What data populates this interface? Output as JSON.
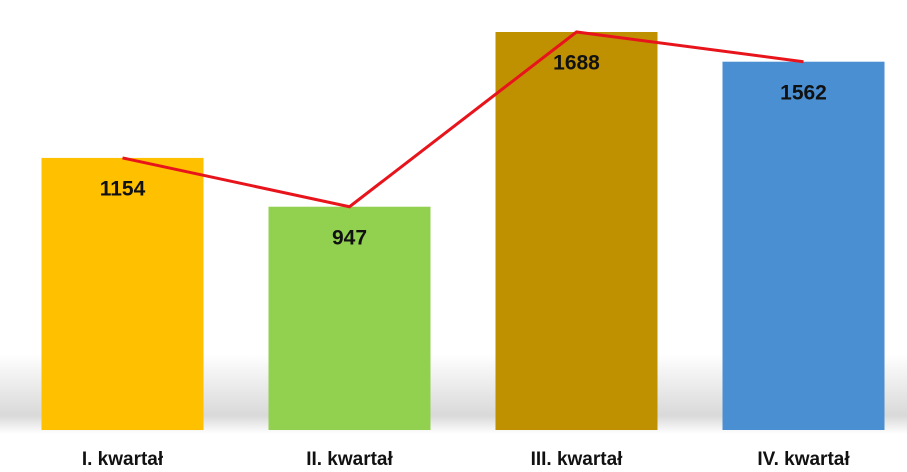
{
  "chart_data": {
    "type": "bar",
    "categories": [
      "I. kwartał",
      "II. kwartał",
      "III. kwartał",
      "IV. kwartał"
    ],
    "values": [
      1154,
      947,
      1688,
      1562
    ],
    "colors": [
      "#ffc000",
      "#92d050",
      "#bf9000",
      "#4a8fd2"
    ],
    "line_color": "#e8141c"
  }
}
